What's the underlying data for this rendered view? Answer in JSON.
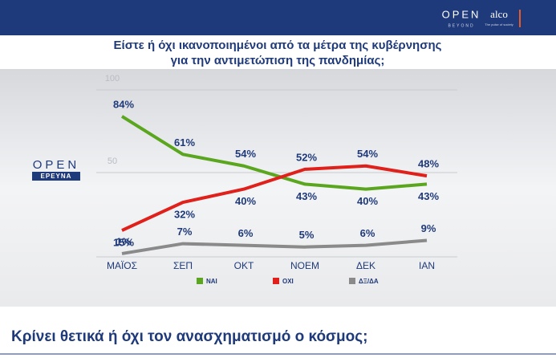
{
  "header": {
    "brand": "OPEN",
    "brand_sub": "BEYOND",
    "partner": "alco",
    "partner_sub": "The pulse of society"
  },
  "chart_data": {
    "type": "line",
    "title": "Είστε ή όχι ικανοποιημένοι από τα μέτρα της κυβέρνησης",
    "subtitle": "για την αντιμετώπιση της πανδημίας;",
    "logo": "OPEN",
    "logo_sub": "ΕΡΕΥΝΑ",
    "categories": [
      "ΜΑΪΟΣ",
      "ΣΕΠ",
      "ΟΚΤ",
      "ΝΟΕΜ",
      "ΔΕΚ",
      "ΙΑΝ"
    ],
    "series": [
      {
        "name": "ΝΑΙ",
        "color": "#5aa61e",
        "values": [
          84,
          61,
          54,
          43,
          40,
          43
        ],
        "value_labels": [
          "84%",
          "61%",
          "54%",
          "43%",
          "40%",
          "43%"
        ]
      },
      {
        "name": "ΟΧΙ",
        "color": "#e0201b",
        "values": [
          15,
          32,
          40,
          52,
          54,
          48
        ],
        "value_labels": [
          "15%",
          "32%",
          "40%",
          "52%",
          "54%",
          "48%"
        ]
      },
      {
        "name": "ΔΞ/ΔΑ",
        "color": "#8a8a8a",
        "values": [
          1,
          7,
          6,
          5,
          6,
          9
        ],
        "value_labels": [
          "1%",
          "7%",
          "6%",
          "5%",
          "6%",
          "9%"
        ]
      }
    ],
    "ylim": [
      0,
      100
    ],
    "yticks": [
      50,
      100
    ],
    "grid": true
  },
  "headline": "Κρίνει θετικά ή όχι τον ανασχηματισμό ο κόσμος;"
}
